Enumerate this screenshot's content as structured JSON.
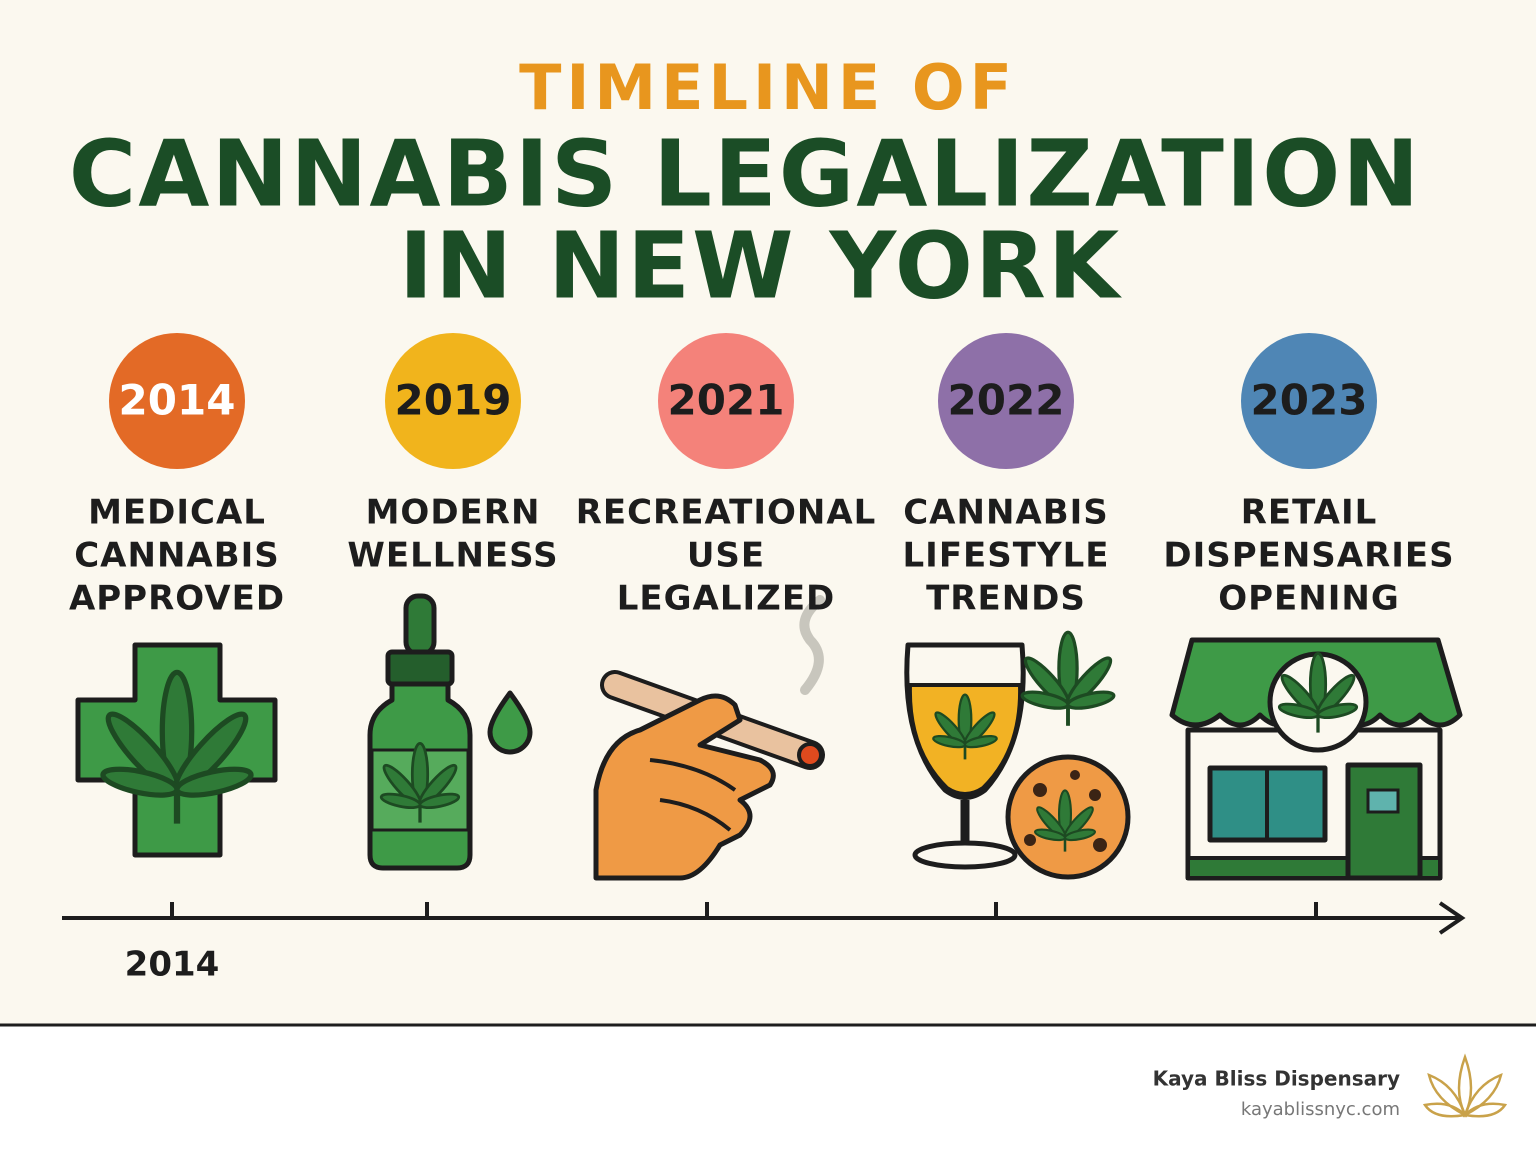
{
  "title": {
    "line1": "TIMELINE OF",
    "line2": "CANNABIS LEGALIZATION",
    "line3": "IN NEW YORK"
  },
  "events": [
    {
      "year": "2014",
      "color": "#e36a26",
      "year_color": "#ffffff",
      "label": [
        "MEDICAL",
        "CANNABIS",
        "APPROVED"
      ]
    },
    {
      "year": "2019",
      "color": "#f1b41c",
      "year_color": "#1d1d1d",
      "label": [
        "MODERN",
        "WELLNESS"
      ]
    },
    {
      "year": "2021",
      "color": "#f4827a",
      "year_color": "#1d1d1d",
      "label": [
        "RECREATIONAL",
        "USE",
        "LEGALIZED"
      ]
    },
    {
      "year": "2022",
      "color": "#8e70a8",
      "year_color": "#1d1d1d",
      "label": [
        "CANNABIS",
        "LIFESTYLE",
        "TRENDS"
      ]
    },
    {
      "year": "2023",
      "color": "#4f86b5",
      "year_color": "#1d1d1d",
      "label": [
        "RETAIL",
        "DISPENSARIES",
        "OPENING"
      ]
    }
  ],
  "axis_label": "2014",
  "footer": {
    "brand": "Kaya Bliss Dispensary",
    "url": "kayablissnyc.com"
  }
}
